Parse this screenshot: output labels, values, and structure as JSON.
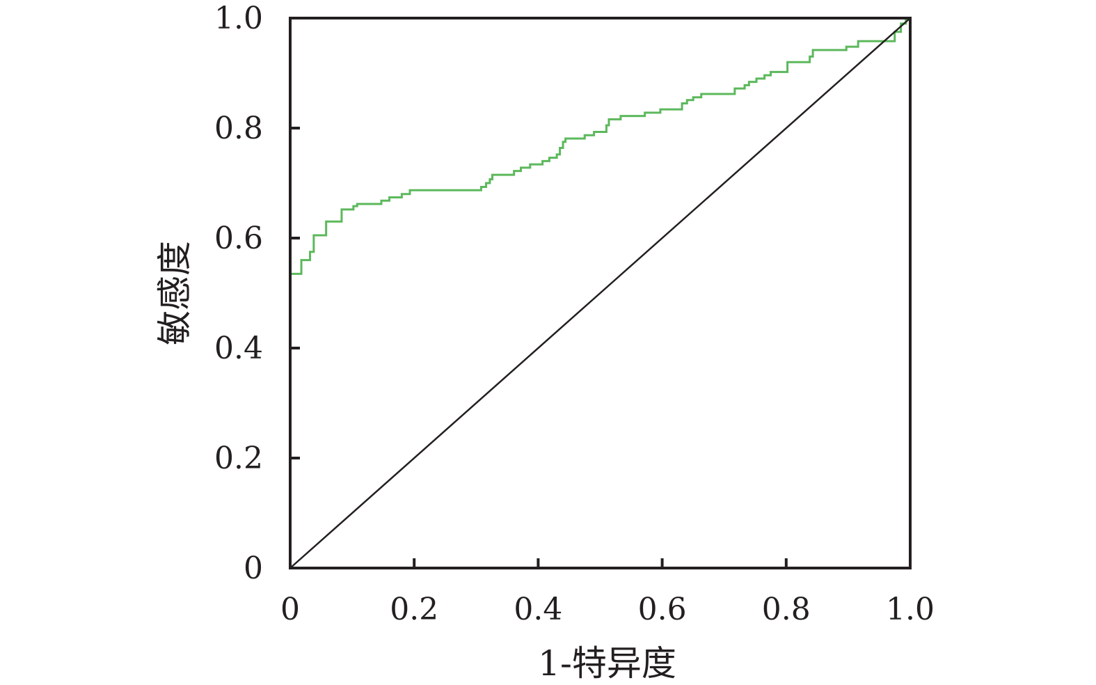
{
  "chart_data": {
    "type": "line",
    "title": "",
    "xlabel": "1-特异度",
    "ylabel": "敏感度",
    "xlim": [
      0,
      1
    ],
    "ylim": [
      0,
      1
    ],
    "grid": false,
    "legend": "none",
    "x_ticks": [
      0,
      0.2,
      0.4,
      0.6,
      0.8,
      1.0
    ],
    "x_tick_labels": [
      "0",
      "0.2",
      "0.4",
      "0.6",
      "0.8",
      "1.0"
    ],
    "y_ticks": [
      0,
      0.2,
      0.4,
      0.6,
      0.8,
      1.0
    ],
    "y_tick_labels": [
      "0",
      "0.2",
      "0.4",
      "0.6",
      "0.8",
      "1.0"
    ],
    "colors": {
      "roc": "#5cb85c",
      "reference": "#231f20",
      "axes": "#231f20"
    },
    "series": [
      {
        "kind": "step",
        "color": "#5cb85c",
        "points": [
          [
            0,
            0.535
          ],
          [
            0.018,
            0.535
          ],
          [
            0.018,
            0.56
          ],
          [
            0.032,
            0.56
          ],
          [
            0.032,
            0.575
          ],
          [
            0.038,
            0.575
          ],
          [
            0.038,
            0.605
          ],
          [
            0.058,
            0.605
          ],
          [
            0.058,
            0.63
          ],
          [
            0.083,
            0.63
          ],
          [
            0.083,
            0.652
          ],
          [
            0.102,
            0.652
          ],
          [
            0.102,
            0.658
          ],
          [
            0.108,
            0.658
          ],
          [
            0.108,
            0.662
          ],
          [
            0.147,
            0.662
          ],
          [
            0.147,
            0.668
          ],
          [
            0.16,
            0.668
          ],
          [
            0.16,
            0.674
          ],
          [
            0.18,
            0.674
          ],
          [
            0.18,
            0.68
          ],
          [
            0.193,
            0.68
          ],
          [
            0.193,
            0.687
          ],
          [
            0.308,
            0.687
          ],
          [
            0.308,
            0.693
          ],
          [
            0.316,
            0.693
          ],
          [
            0.316,
            0.7
          ],
          [
            0.322,
            0.7
          ],
          [
            0.322,
            0.707
          ],
          [
            0.326,
            0.707
          ],
          [
            0.326,
            0.715
          ],
          [
            0.361,
            0.715
          ],
          [
            0.361,
            0.722
          ],
          [
            0.372,
            0.722
          ],
          [
            0.372,
            0.728
          ],
          [
            0.387,
            0.728
          ],
          [
            0.387,
            0.734
          ],
          [
            0.407,
            0.734
          ],
          [
            0.407,
            0.74
          ],
          [
            0.418,
            0.74
          ],
          [
            0.418,
            0.746
          ],
          [
            0.43,
            0.746
          ],
          [
            0.43,
            0.752
          ],
          [
            0.435,
            0.752
          ],
          [
            0.435,
            0.764
          ],
          [
            0.44,
            0.764
          ],
          [
            0.44,
            0.775
          ],
          [
            0.444,
            0.775
          ],
          [
            0.444,
            0.781
          ],
          [
            0.475,
            0.781
          ],
          [
            0.475,
            0.787
          ],
          [
            0.49,
            0.787
          ],
          [
            0.49,
            0.793
          ],
          [
            0.51,
            0.793
          ],
          [
            0.51,
            0.805
          ],
          [
            0.514,
            0.805
          ],
          [
            0.514,
            0.816
          ],
          [
            0.533,
            0.816
          ],
          [
            0.533,
            0.822
          ],
          [
            0.572,
            0.822
          ],
          [
            0.572,
            0.828
          ],
          [
            0.597,
            0.828
          ],
          [
            0.597,
            0.834
          ],
          [
            0.632,
            0.834
          ],
          [
            0.632,
            0.845
          ],
          [
            0.64,
            0.845
          ],
          [
            0.64,
            0.851
          ],
          [
            0.65,
            0.851
          ],
          [
            0.65,
            0.856
          ],
          [
            0.663,
            0.856
          ],
          [
            0.663,
            0.862
          ],
          [
            0.717,
            0.862
          ],
          [
            0.717,
            0.872
          ],
          [
            0.733,
            0.872
          ],
          [
            0.733,
            0.878
          ],
          [
            0.74,
            0.878
          ],
          [
            0.74,
            0.884
          ],
          [
            0.752,
            0.884
          ],
          [
            0.752,
            0.89
          ],
          [
            0.765,
            0.89
          ],
          [
            0.765,
            0.896
          ],
          [
            0.775,
            0.896
          ],
          [
            0.775,
            0.902
          ],
          [
            0.802,
            0.902
          ],
          [
            0.802,
            0.92
          ],
          [
            0.838,
            0.92
          ],
          [
            0.838,
            0.93
          ],
          [
            0.843,
            0.93
          ],
          [
            0.843,
            0.942
          ],
          [
            0.897,
            0.942
          ],
          [
            0.897,
            0.948
          ],
          [
            0.916,
            0.948
          ],
          [
            0.916,
            0.958
          ],
          [
            0.975,
            0.958
          ],
          [
            0.975,
            0.975
          ],
          [
            0.985,
            0.975
          ],
          [
            0.985,
            0.99
          ],
          [
            0.993,
            0.99
          ],
          [
            0.993,
            1.0
          ],
          [
            1.0,
            1.0
          ]
        ]
      },
      {
        "kind": "reference-diagonal",
        "color": "#231f20",
        "points": [
          [
            0,
            0
          ],
          [
            1,
            1
          ]
        ]
      }
    ]
  }
}
